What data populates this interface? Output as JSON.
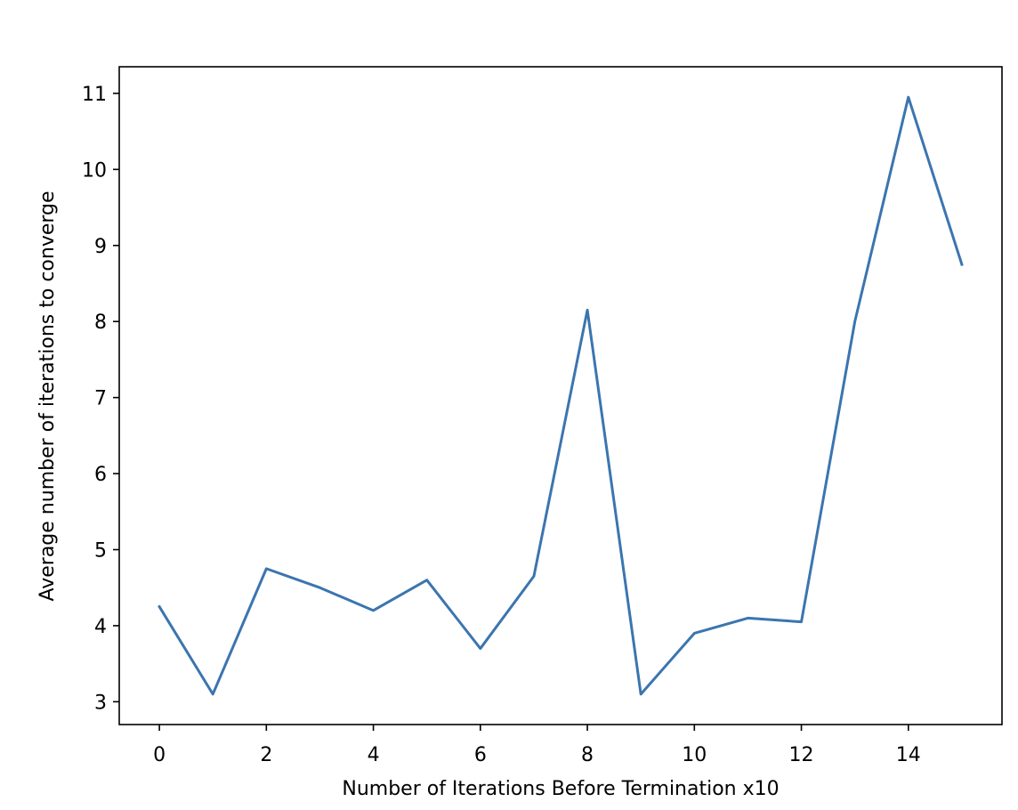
{
  "chart_data": {
    "type": "line",
    "title": "",
    "xlabel": "Number of Iterations Before Termination x10",
    "ylabel": "Average number of iterations to converge",
    "xlim": [
      -0.75,
      15.75
    ],
    "ylim": [
      2.7,
      11.35
    ],
    "xticks": [
      0,
      2,
      4,
      6,
      8,
      10,
      12,
      14
    ],
    "yticks": [
      3,
      4,
      5,
      6,
      7,
      8,
      9,
      10,
      11
    ],
    "grid": false,
    "series": [
      {
        "name": "avg_iterations",
        "color": "#3b75af",
        "x": [
          0,
          1,
          2,
          3,
          4,
          5,
          6,
          7,
          8,
          9,
          10,
          11,
          12,
          13,
          14,
          15
        ],
        "y": [
          4.25,
          3.1,
          4.75,
          4.5,
          4.2,
          4.6,
          3.7,
          4.65,
          8.15,
          3.1,
          3.9,
          4.1,
          4.05,
          8.0,
          10.95,
          8.75
        ]
      }
    ]
  }
}
